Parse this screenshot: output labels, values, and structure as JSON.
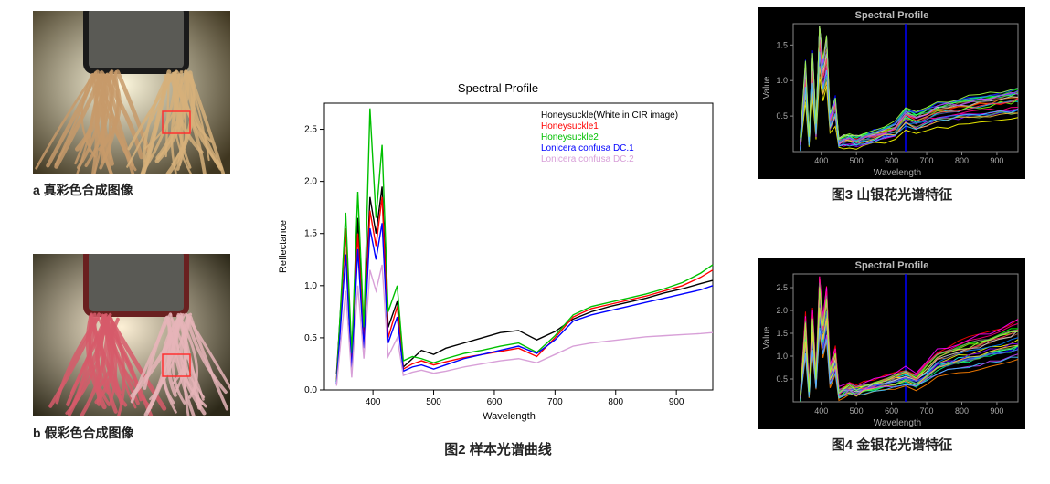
{
  "panel_a": {
    "caption": "a 真彩色合成图像",
    "bg_gradient": [
      "#fdf7dd",
      "#3f3620"
    ],
    "frame_color": "#1a1a1a",
    "sample_color_left": "#c79a6a",
    "sample_color_right": "#d6b07a",
    "highlight_box_color": "#ff3030"
  },
  "panel_b": {
    "caption": "b 假彩色合成图像",
    "bg_gradient": [
      "#fdf0d6",
      "#2c2818"
    ],
    "frame_color": "#6a2020",
    "sample_color_left": "#d65a6a",
    "sample_color_right": "#e6b4b8",
    "highlight_box_color": "#ff3030"
  },
  "chart2": {
    "caption": "图2 样本光谱曲线",
    "title": "Spectral Profile",
    "xlabel": "Wavelength",
    "ylabel": "Reflectance",
    "xlim": [
      320,
      960
    ],
    "ylim": [
      0.0,
      2.75
    ],
    "xticks": [
      400,
      500,
      600,
      700,
      800,
      900
    ],
    "yticks": [
      0.0,
      0.5,
      1.0,
      1.5,
      2.0,
      2.5
    ],
    "legend": [
      {
        "label": "Honeysuckle(White in CIR image)",
        "color": "#000000"
      },
      {
        "label": "Honeysuckle1",
        "color": "#ff0000"
      },
      {
        "label": "Honeysuckle2",
        "color": "#00c000"
      },
      {
        "label": "Lonicera confusa DC.1",
        "color": "#0000ff"
      },
      {
        "label": "Lonicera confusa DC.2",
        "color": "#d8a0d8"
      }
    ],
    "series": [
      {
        "color": "#000000",
        "pts": [
          [
            340,
            0.15
          ],
          [
            355,
            1.55
          ],
          [
            365,
            0.25
          ],
          [
            375,
            1.65
          ],
          [
            385,
            0.5
          ],
          [
            395,
            1.85
          ],
          [
            405,
            1.5
          ],
          [
            415,
            1.95
          ],
          [
            425,
            0.6
          ],
          [
            440,
            0.85
          ],
          [
            450,
            0.22
          ],
          [
            465,
            0.3
          ],
          [
            480,
            0.38
          ],
          [
            500,
            0.34
          ],
          [
            520,
            0.4
          ],
          [
            550,
            0.45
          ],
          [
            580,
            0.5
          ],
          [
            610,
            0.55
          ],
          [
            640,
            0.57
          ],
          [
            670,
            0.48
          ],
          [
            700,
            0.56
          ],
          [
            730,
            0.68
          ],
          [
            760,
            0.75
          ],
          [
            790,
            0.8
          ],
          [
            820,
            0.84
          ],
          [
            850,
            0.88
          ],
          [
            880,
            0.93
          ],
          [
            910,
            0.97
          ],
          [
            940,
            1.02
          ],
          [
            960,
            1.05
          ]
        ]
      },
      {
        "color": "#ff0000",
        "pts": [
          [
            340,
            0.1
          ],
          [
            355,
            1.55
          ],
          [
            365,
            0.22
          ],
          [
            375,
            1.5
          ],
          [
            385,
            0.45
          ],
          [
            395,
            1.72
          ],
          [
            405,
            1.38
          ],
          [
            415,
            1.85
          ],
          [
            425,
            0.5
          ],
          [
            440,
            0.8
          ],
          [
            450,
            0.2
          ],
          [
            465,
            0.25
          ],
          [
            480,
            0.28
          ],
          [
            500,
            0.24
          ],
          [
            520,
            0.27
          ],
          [
            550,
            0.31
          ],
          [
            580,
            0.34
          ],
          [
            610,
            0.37
          ],
          [
            640,
            0.4
          ],
          [
            670,
            0.32
          ],
          [
            700,
            0.5
          ],
          [
            730,
            0.7
          ],
          [
            760,
            0.78
          ],
          [
            790,
            0.82
          ],
          [
            820,
            0.86
          ],
          [
            850,
            0.9
          ],
          [
            880,
            0.95
          ],
          [
            910,
            1.0
          ],
          [
            940,
            1.08
          ],
          [
            960,
            1.15
          ]
        ]
      },
      {
        "color": "#00c000",
        "pts": [
          [
            340,
            0.08
          ],
          [
            355,
            1.7
          ],
          [
            365,
            0.35
          ],
          [
            375,
            1.9
          ],
          [
            385,
            0.6
          ],
          [
            395,
            2.7
          ],
          [
            405,
            1.65
          ],
          [
            415,
            2.35
          ],
          [
            425,
            0.75
          ],
          [
            440,
            1.0
          ],
          [
            450,
            0.28
          ],
          [
            465,
            0.32
          ],
          [
            480,
            0.3
          ],
          [
            500,
            0.26
          ],
          [
            520,
            0.3
          ],
          [
            550,
            0.35
          ],
          [
            580,
            0.38
          ],
          [
            610,
            0.42
          ],
          [
            640,
            0.45
          ],
          [
            670,
            0.36
          ],
          [
            700,
            0.52
          ],
          [
            730,
            0.72
          ],
          [
            760,
            0.8
          ],
          [
            790,
            0.84
          ],
          [
            820,
            0.88
          ],
          [
            850,
            0.92
          ],
          [
            880,
            0.97
          ],
          [
            910,
            1.03
          ],
          [
            940,
            1.12
          ],
          [
            960,
            1.2
          ]
        ]
      },
      {
        "color": "#0000ff",
        "pts": [
          [
            340,
            0.06
          ],
          [
            355,
            1.3
          ],
          [
            365,
            0.18
          ],
          [
            375,
            1.35
          ],
          [
            385,
            0.4
          ],
          [
            395,
            1.55
          ],
          [
            405,
            1.25
          ],
          [
            415,
            1.6
          ],
          [
            425,
            0.45
          ],
          [
            440,
            0.7
          ],
          [
            450,
            0.18
          ],
          [
            465,
            0.22
          ],
          [
            480,
            0.24
          ],
          [
            500,
            0.2
          ],
          [
            520,
            0.24
          ],
          [
            550,
            0.3
          ],
          [
            580,
            0.34
          ],
          [
            610,
            0.38
          ],
          [
            640,
            0.42
          ],
          [
            670,
            0.35
          ],
          [
            700,
            0.48
          ],
          [
            730,
            0.66
          ],
          [
            760,
            0.72
          ],
          [
            790,
            0.76
          ],
          [
            820,
            0.8
          ],
          [
            850,
            0.84
          ],
          [
            880,
            0.88
          ],
          [
            910,
            0.92
          ],
          [
            940,
            0.96
          ],
          [
            960,
            1.0
          ]
        ]
      },
      {
        "color": "#d8a0d8",
        "pts": [
          [
            340,
            0.04
          ],
          [
            355,
            0.95
          ],
          [
            365,
            0.12
          ],
          [
            375,
            1.0
          ],
          [
            385,
            0.3
          ],
          [
            395,
            1.15
          ],
          [
            405,
            0.95
          ],
          [
            415,
            1.2
          ],
          [
            425,
            0.32
          ],
          [
            440,
            0.5
          ],
          [
            450,
            0.14
          ],
          [
            465,
            0.17
          ],
          [
            480,
            0.19
          ],
          [
            500,
            0.16
          ],
          [
            520,
            0.18
          ],
          [
            550,
            0.22
          ],
          [
            580,
            0.25
          ],
          [
            610,
            0.28
          ],
          [
            640,
            0.3
          ],
          [
            670,
            0.26
          ],
          [
            700,
            0.34
          ],
          [
            730,
            0.42
          ],
          [
            760,
            0.45
          ],
          [
            790,
            0.47
          ],
          [
            820,
            0.49
          ],
          [
            850,
            0.51
          ],
          [
            880,
            0.52
          ],
          [
            910,
            0.53
          ],
          [
            940,
            0.54
          ],
          [
            960,
            0.55
          ]
        ]
      }
    ]
  },
  "chart3": {
    "caption": "图3 山银花光谱特征",
    "title": "Spectral Profile",
    "xlabel": "Wavelength",
    "ylabel": "Value",
    "xlim": [
      320,
      960
    ],
    "ylim": [
      0.0,
      1.8
    ],
    "xticks": [
      400,
      500,
      600,
      700,
      800,
      900
    ],
    "yticks": [
      0.5,
      1.0,
      1.5
    ],
    "vline_x": 640,
    "vline_color": "#0000ff",
    "multi_colors": [
      "#ff0000",
      "#00ff00",
      "#0000ff",
      "#ff00ff",
      "#00ffff",
      "#ffff00",
      "#ff8000",
      "#8000ff",
      "#00ff80",
      "#ff0080",
      "#80ff00",
      "#0080ff",
      "#aa6644",
      "#66aa44",
      "#4466aa",
      "#cccccc",
      "#888888",
      "#ff4060",
      "#40ff60",
      "#4060ff",
      "#ffc040",
      "#c040ff",
      "#40c0ff",
      "#a0ff40"
    ],
    "bundle_shape": [
      [
        340,
        0.1
      ],
      [
        355,
        1.0
      ],
      [
        365,
        0.15
      ],
      [
        375,
        1.1
      ],
      [
        385,
        0.3
      ],
      [
        395,
        1.55
      ],
      [
        405,
        1.0
      ],
      [
        415,
        1.3
      ],
      [
        425,
        0.4
      ],
      [
        440,
        0.6
      ],
      [
        450,
        0.12
      ],
      [
        465,
        0.15
      ],
      [
        480,
        0.17
      ],
      [
        500,
        0.14
      ],
      [
        520,
        0.17
      ],
      [
        550,
        0.21
      ],
      [
        580,
        0.25
      ],
      [
        610,
        0.29
      ],
      [
        640,
        0.47
      ],
      [
        670,
        0.42
      ],
      [
        700,
        0.47
      ],
      [
        730,
        0.52
      ],
      [
        760,
        0.55
      ],
      [
        790,
        0.57
      ],
      [
        820,
        0.59
      ],
      [
        850,
        0.61
      ],
      [
        880,
        0.63
      ],
      [
        910,
        0.65
      ],
      [
        940,
        0.67
      ],
      [
        960,
        0.69
      ]
    ],
    "bundle_jitter": 0.11
  },
  "chart4": {
    "caption": "图4 金银花光谱特征",
    "title": "Spectral Profile",
    "xlabel": "Wavelength",
    "ylabel": "Value",
    "xlim": [
      320,
      960
    ],
    "ylim": [
      0.0,
      2.8
    ],
    "xticks": [
      400,
      500,
      600,
      700,
      800,
      900
    ],
    "yticks": [
      0.5,
      1.0,
      1.5,
      2.0,
      2.5
    ],
    "vline_x": 640,
    "vline_color": "#0000ff",
    "multi_colors": [
      "#ff0000",
      "#00ff00",
      "#0000ff",
      "#ff00ff",
      "#00ffff",
      "#ffff00",
      "#ff8000",
      "#8000ff",
      "#00ff80",
      "#ff0080",
      "#80ff00",
      "#0080ff",
      "#aa6644",
      "#66aa44",
      "#4466aa",
      "#cccccc",
      "#888888",
      "#ff4060",
      "#40ff60",
      "#4060ff",
      "#ffc040",
      "#c040ff",
      "#40c0ff",
      "#a0ff40"
    ],
    "bundle_shape": [
      [
        340,
        0.1
      ],
      [
        355,
        1.4
      ],
      [
        365,
        0.2
      ],
      [
        375,
        1.5
      ],
      [
        385,
        0.4
      ],
      [
        395,
        2.1
      ],
      [
        405,
        1.35
      ],
      [
        415,
        1.85
      ],
      [
        425,
        0.55
      ],
      [
        440,
        0.85
      ],
      [
        450,
        0.18
      ],
      [
        465,
        0.23
      ],
      [
        480,
        0.27
      ],
      [
        500,
        0.23
      ],
      [
        520,
        0.28
      ],
      [
        550,
        0.34
      ],
      [
        580,
        0.4
      ],
      [
        610,
        0.46
      ],
      [
        640,
        0.52
      ],
      [
        670,
        0.44
      ],
      [
        700,
        0.62
      ],
      [
        730,
        0.8
      ],
      [
        760,
        0.88
      ],
      [
        790,
        0.94
      ],
      [
        820,
        1.0
      ],
      [
        850,
        1.06
      ],
      [
        880,
        1.12
      ],
      [
        910,
        1.18
      ],
      [
        940,
        1.24
      ],
      [
        960,
        1.3
      ]
    ],
    "bundle_jitter": 0.16
  }
}
